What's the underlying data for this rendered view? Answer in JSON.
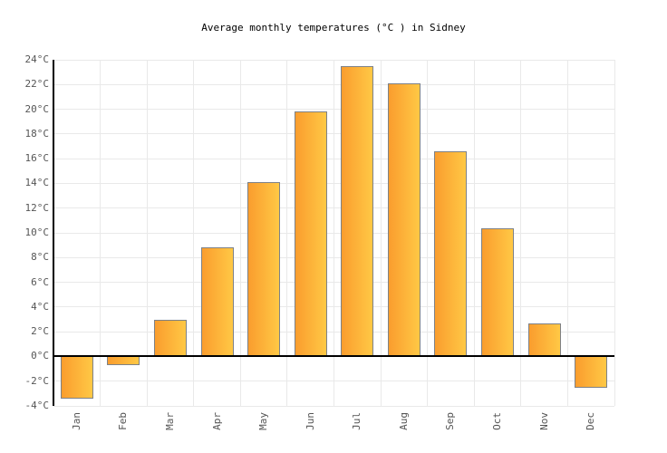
{
  "title": "Average monthly temperatures (°C ) in Sidney",
  "chart_data": {
    "type": "bar",
    "title": "Average monthly temperatures (°C ) in Sidney",
    "categories": [
      "Jan",
      "Feb",
      "Mar",
      "Apr",
      "May",
      "Jun",
      "Jul",
      "Aug",
      "Sep",
      "Oct",
      "Nov",
      "Dec"
    ],
    "values": [
      -3.4,
      -0.7,
      3.0,
      8.8,
      14.1,
      19.8,
      23.5,
      22.1,
      16.6,
      10.4,
      2.7,
      -2.5
    ],
    "xlabel": "",
    "ylabel": "°C",
    "ylim": [
      -4,
      24
    ],
    "ytick_step": 2,
    "ytick_suffix": "°C",
    "grid": true,
    "legend": "none",
    "colors": {
      "bar_gradient_left": "#fa9d2e",
      "bar_gradient_right": "#ffc845",
      "bar_border": "#7d8187",
      "gridline": "#e9e9e9",
      "axis": "#000000",
      "tick_label": "#555555",
      "title": "#000000",
      "background": "#ffffff"
    }
  },
  "layout_hints": {
    "zero_line": "black horizontal line at 0°C",
    "bar_label_rotation": "vertical bottom-to-top"
  }
}
